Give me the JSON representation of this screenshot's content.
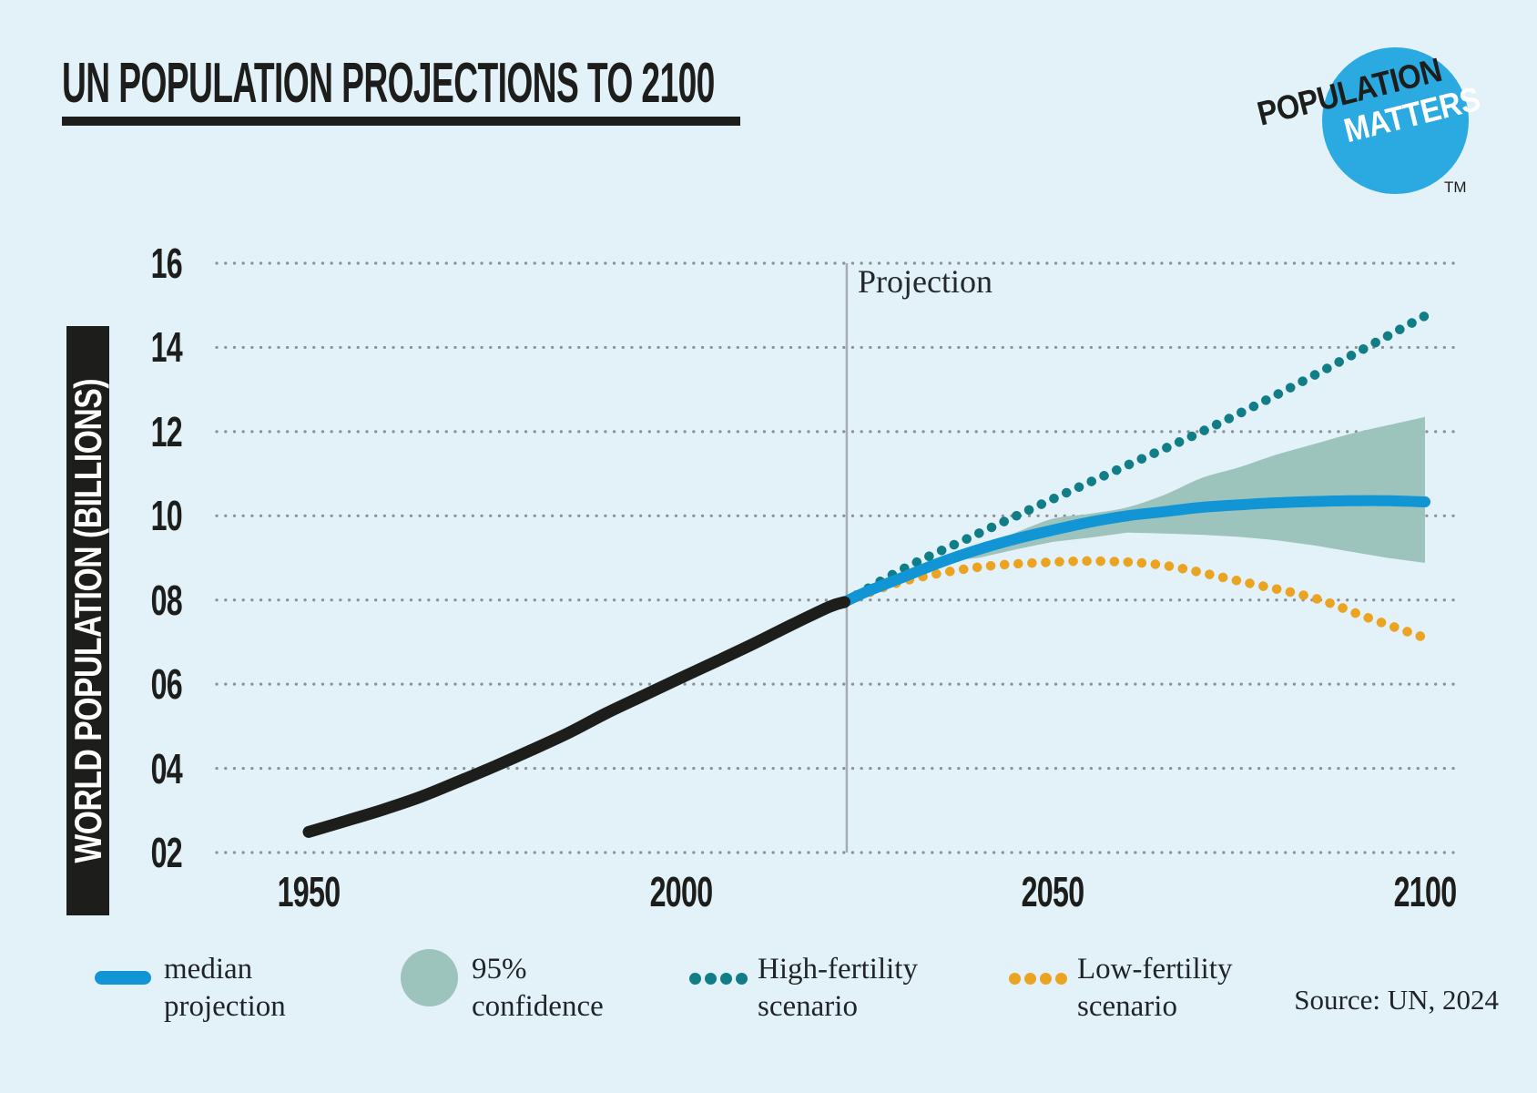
{
  "colors": {
    "bg": "#e3f1f9",
    "ink": "#1d1d1b",
    "blue": "#1295d5",
    "teal": "#107d87",
    "orange": "#eaa422",
    "sage": "#9dc3bd",
    "grid": "#8b9194",
    "vline": "#a4adb0",
    "logo_blue": "#2baae2"
  },
  "header": {
    "title": "UN POPULATION PROJECTIONS TO 2100"
  },
  "logo": {
    "line1": "POPULATION",
    "line2": "MATTERS",
    "tm": "TM"
  },
  "chart_data": {
    "type": "line",
    "title": "UN POPULATION PROJECTIONS TO 2100",
    "xlabel": "",
    "ylabel": "WORLD POPULATION (BILLIONS)",
    "xlim": [
      1938,
      2104
    ],
    "ylim": [
      2,
      16
    ],
    "grid": "dotted horizontal gridlines every 2 billion",
    "legend_position": "bottom",
    "annotation": {
      "label": "Projection",
      "year": 2022
    },
    "x_ticks": [
      {
        "label": "1950",
        "year": 1950
      },
      {
        "label": "2000",
        "year": 2000
      },
      {
        "label": "2050",
        "year": 2050
      },
      {
        "label": "2100",
        "year": 2100
      }
    ],
    "y_ticks": [
      {
        "label": "16",
        "value": 16
      },
      {
        "label": "14",
        "value": 14
      },
      {
        "label": "12",
        "value": 12
      },
      {
        "label": "10",
        "value": 10
      },
      {
        "label": "08",
        "value": 8
      },
      {
        "label": "06",
        "value": 6
      },
      {
        "label": "04",
        "value": 4
      },
      {
        "label": "02",
        "value": 2
      }
    ],
    "series": [
      {
        "name": "historical population",
        "style": "solid",
        "color_key": "ink",
        "width": 13,
        "points": [
          [
            1950,
            2.49
          ],
          [
            1955,
            2.75
          ],
          [
            1960,
            3.02
          ],
          [
            1965,
            3.32
          ],
          [
            1970,
            3.68
          ],
          [
            1975,
            4.05
          ],
          [
            1980,
            4.44
          ],
          [
            1985,
            4.85
          ],
          [
            1990,
            5.31
          ],
          [
            1995,
            5.73
          ],
          [
            2000,
            6.15
          ],
          [
            2005,
            6.56
          ],
          [
            2010,
            6.98
          ],
          [
            2015,
            7.42
          ],
          [
            2020,
            7.84
          ],
          [
            2022,
            7.95
          ]
        ]
      },
      {
        "name": "median projection",
        "style": "solid",
        "color_key": "blue",
        "width": 12,
        "points": [
          [
            2022,
            7.95
          ],
          [
            2025,
            8.2
          ],
          [
            2030,
            8.55
          ],
          [
            2035,
            8.9
          ],
          [
            2040,
            9.2
          ],
          [
            2045,
            9.45
          ],
          [
            2050,
            9.66
          ],
          [
            2055,
            9.85
          ],
          [
            2060,
            10.0
          ],
          [
            2065,
            10.1
          ],
          [
            2070,
            10.2
          ],
          [
            2075,
            10.26
          ],
          [
            2080,
            10.31
          ],
          [
            2085,
            10.34
          ],
          [
            2090,
            10.36
          ],
          [
            2095,
            10.36
          ],
          [
            2100,
            10.33
          ]
        ]
      },
      {
        "name": "High-fertility scenario",
        "style": "dotted",
        "color_key": "teal",
        "width": 10.5,
        "points": [
          [
            2022,
            7.95
          ],
          [
            2030,
            8.75
          ],
          [
            2040,
            9.58
          ],
          [
            2050,
            10.4
          ],
          [
            2060,
            11.2
          ],
          [
            2070,
            12.0
          ],
          [
            2080,
            12.87
          ],
          [
            2090,
            13.8
          ],
          [
            2100,
            14.75
          ]
        ]
      },
      {
        "name": "Low-fertility scenario",
        "style": "dotted",
        "color_key": "orange",
        "width": 10.5,
        "points": [
          [
            2022,
            7.95
          ],
          [
            2030,
            8.45
          ],
          [
            2040,
            8.78
          ],
          [
            2050,
            8.9
          ],
          [
            2057,
            8.92
          ],
          [
            2065,
            8.82
          ],
          [
            2075,
            8.45
          ],
          [
            2085,
            8.05
          ],
          [
            2092,
            7.6
          ],
          [
            2100,
            7.1
          ]
        ]
      }
    ],
    "band": {
      "name": "95% confidence",
      "color_key": "sage",
      "upper": [
        [
          2036,
          8.97
        ],
        [
          2040,
          9.22
        ],
        [
          2045,
          9.6
        ],
        [
          2050,
          9.93
        ],
        [
          2055,
          10.05
        ],
        [
          2060,
          10.2
        ],
        [
          2065,
          10.5
        ],
        [
          2070,
          10.9
        ],
        [
          2075,
          11.15
        ],
        [
          2080,
          11.45
        ],
        [
          2085,
          11.7
        ],
        [
          2090,
          11.95
        ],
        [
          2095,
          12.15
        ],
        [
          2100,
          12.35
        ]
      ],
      "lower": [
        [
          2036,
          8.93
        ],
        [
          2040,
          9.0
        ],
        [
          2045,
          9.2
        ],
        [
          2050,
          9.38
        ],
        [
          2055,
          9.48
        ],
        [
          2060,
          9.6
        ],
        [
          2065,
          9.58
        ],
        [
          2070,
          9.55
        ],
        [
          2075,
          9.5
        ],
        [
          2080,
          9.42
        ],
        [
          2085,
          9.3
        ],
        [
          2090,
          9.15
        ],
        [
          2095,
          9.0
        ],
        [
          2100,
          8.88
        ]
      ]
    }
  },
  "legend": {
    "items": [
      {
        "swatch": "line",
        "line1": "median",
        "line2": "projection"
      },
      {
        "swatch": "circle",
        "line1": "95%",
        "line2": "confidence"
      },
      {
        "swatch": "dots",
        "line1": "High-fertility",
        "line2": "scenario"
      },
      {
        "swatch": "dots",
        "line1": "Low-fertility",
        "line2": "scenario"
      }
    ]
  },
  "source": "Source: UN, 2024"
}
